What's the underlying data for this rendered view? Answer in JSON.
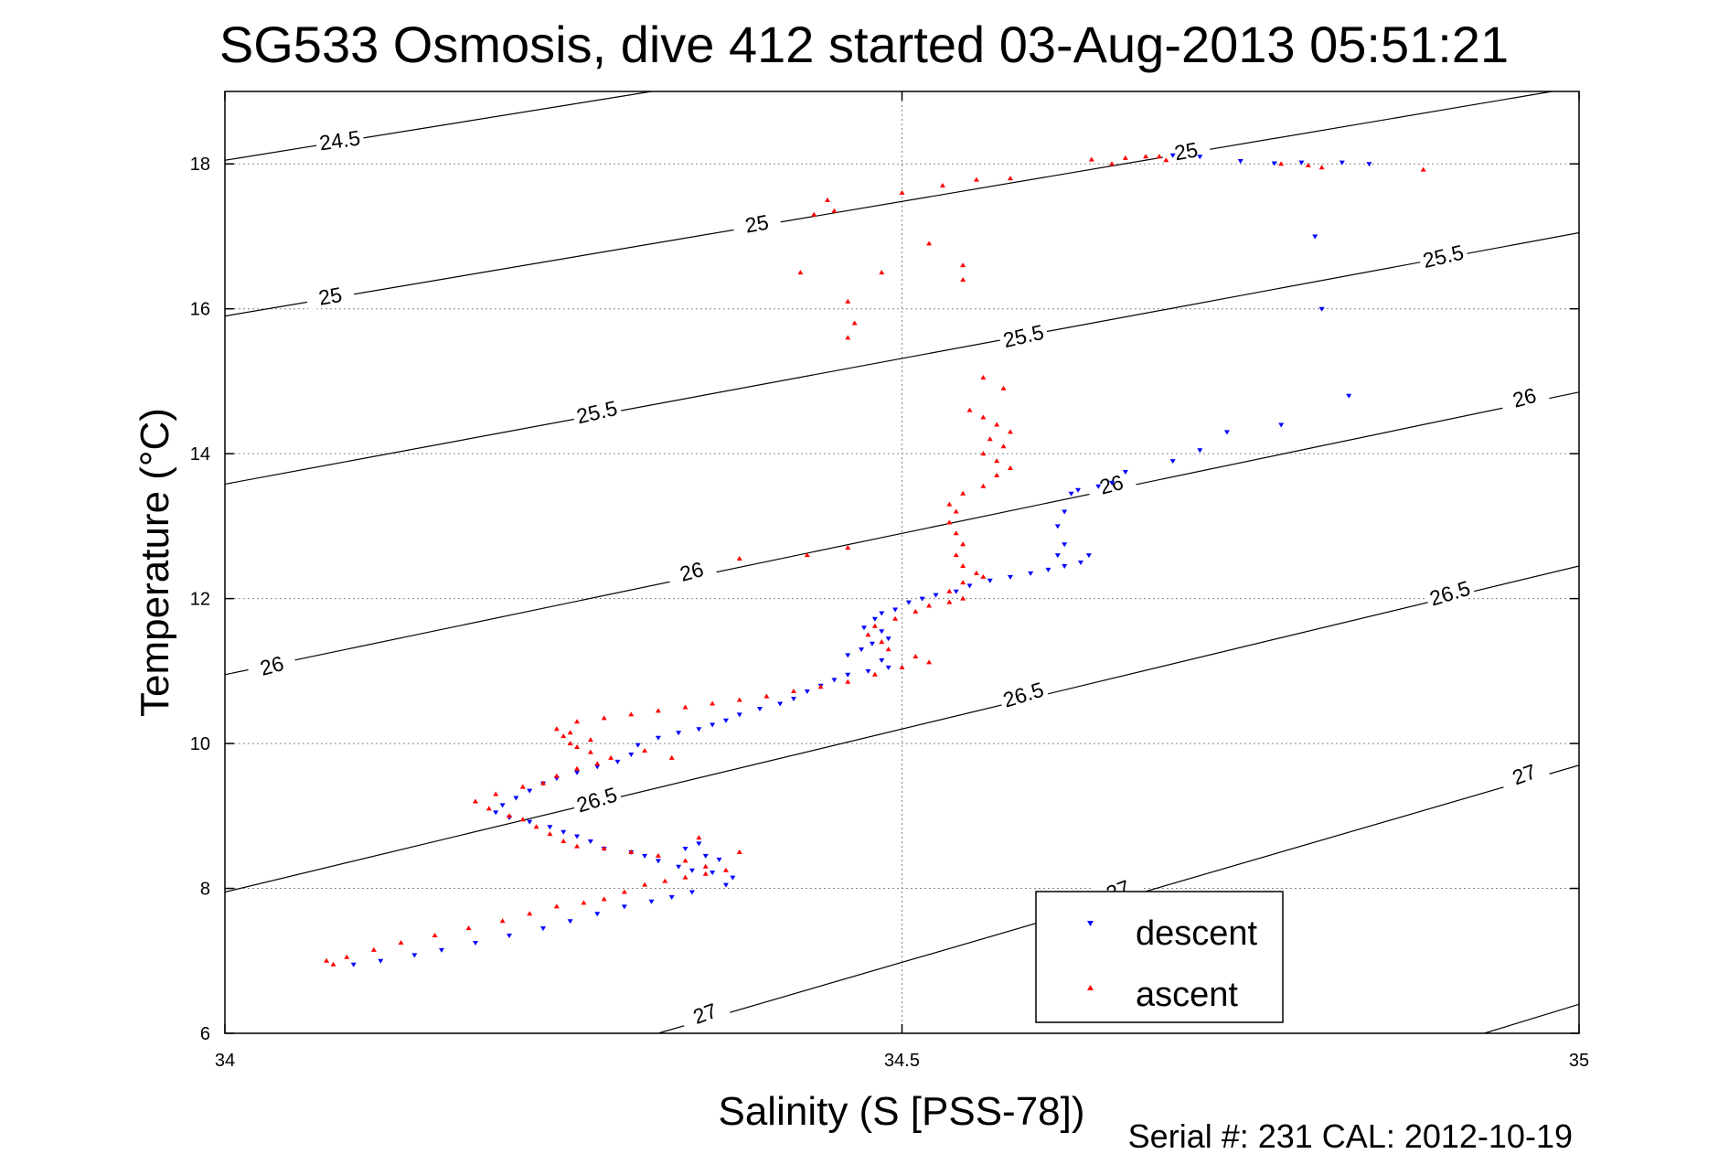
{
  "chart_data": {
    "type": "scatter",
    "title": "SG533 Osmosis, dive 412 started 03-Aug-2013 05:51:21",
    "xlabel": "Salinity (S [PSS-78])",
    "ylabel": "Temperature (°C)",
    "xlim": [
      34,
      35
    ],
    "ylim": [
      6,
      19
    ],
    "xticks": [
      34,
      34.5,
      35
    ],
    "xtick_labels": [
      "34",
      "34.5",
      "35"
    ],
    "yticks": [
      6,
      8,
      10,
      12,
      14,
      16,
      18
    ],
    "ytick_labels": [
      "6",
      "8",
      "10",
      "12",
      "14",
      "16",
      "18"
    ],
    "grid": true,
    "legend_position": "bottom-center",
    "footer": "Serial #: 231  CAL: 2012-10-19",
    "colors": {
      "descent": "#0000ff",
      "ascent": "#ff0000",
      "contour": "#000000"
    },
    "density_contours": [
      {
        "level": "24.5",
        "points": [
          [
            34.0,
            18.05
          ],
          [
            34.315,
            19.0
          ]
        ],
        "labels": [
          {
            "x": 34.085,
            "y": 18.3,
            "angle": -8
          }
        ]
      },
      {
        "level": "25",
        "points": [
          [
            34.0,
            15.9
          ],
          [
            34.98,
            19.0
          ]
        ],
        "labels": [
          {
            "x": 34.078,
            "y": 16.15,
            "angle": -10
          },
          {
            "x": 34.393,
            "y": 17.15,
            "angle": -10
          },
          {
            "x": 34.71,
            "y": 18.15,
            "angle": -10
          }
        ]
      },
      {
        "level": "25.5",
        "points": [
          [
            34.0,
            13.58
          ],
          [
            35.0,
            17.05
          ]
        ],
        "labels": [
          {
            "x": 34.275,
            "y": 14.55,
            "angle": -13
          },
          {
            "x": 34.59,
            "y": 15.6,
            "angle": -13
          },
          {
            "x": 34.9,
            "y": 16.7,
            "angle": -13
          }
        ]
      },
      {
        "level": "26",
        "points": [
          [
            34.0,
            10.95
          ],
          [
            35.0,
            14.85
          ]
        ],
        "labels": [
          {
            "x": 34.035,
            "y": 11.05,
            "angle": -15
          },
          {
            "x": 34.345,
            "y": 12.35,
            "angle": -15
          },
          {
            "x": 34.655,
            "y": 13.55,
            "angle": -15
          },
          {
            "x": 34.96,
            "y": 14.75,
            "angle": -15
          }
        ]
      },
      {
        "level": "26.5",
        "points": [
          [
            34.0,
            7.95
          ],
          [
            35.0,
            12.45
          ]
        ],
        "labels": [
          {
            "x": 34.275,
            "y": 9.2,
            "angle": -17
          },
          {
            "x": 34.59,
            "y": 10.65,
            "angle": -17
          },
          {
            "x": 34.905,
            "y": 12.05,
            "angle": -17
          }
        ]
      },
      {
        "level": "27",
        "points": [
          [
            34.32,
            6.0
          ],
          [
            35.0,
            9.7
          ]
        ],
        "labels": [
          {
            "x": 34.355,
            "y": 6.25,
            "angle": -20
          },
          {
            "x": 34.66,
            "y": 7.95,
            "angle": -20
          },
          {
            "x": 34.96,
            "y": 9.55,
            "angle": -20
          }
        ]
      },
      {
        "level": "27b",
        "points": [
          [
            34.93,
            6.0
          ],
          [
            35.0,
            6.4
          ]
        ],
        "labels": []
      }
    ],
    "series": [
      {
        "name": "descent",
        "marker": "triangle-down",
        "points": [
          [
            34.845,
            18.0
          ],
          [
            34.825,
            18.02
          ],
          [
            34.795,
            18.02
          ],
          [
            34.775,
            18.01
          ],
          [
            34.75,
            18.04
          ],
          [
            34.72,
            18.1
          ],
          [
            34.7,
            18.12
          ],
          [
            34.805,
            17.0
          ],
          [
            34.81,
            16.0
          ],
          [
            34.83,
            14.8
          ],
          [
            34.78,
            14.4
          ],
          [
            34.74,
            14.3
          ],
          [
            34.72,
            14.05
          ],
          [
            34.7,
            13.9
          ],
          [
            34.665,
            13.75
          ],
          [
            34.655,
            13.6
          ],
          [
            34.645,
            13.55
          ],
          [
            34.63,
            13.5
          ],
          [
            34.625,
            13.45
          ],
          [
            34.62,
            13.2
          ],
          [
            34.615,
            13.0
          ],
          [
            34.62,
            12.75
          ],
          [
            34.615,
            12.6
          ],
          [
            34.638,
            12.6
          ],
          [
            34.632,
            12.5
          ],
          [
            34.62,
            12.45
          ],
          [
            34.608,
            12.4
          ],
          [
            34.595,
            12.35
          ],
          [
            34.58,
            12.3
          ],
          [
            34.565,
            12.25
          ],
          [
            34.55,
            12.18
          ],
          [
            34.54,
            12.1
          ],
          [
            34.525,
            12.05
          ],
          [
            34.515,
            12.0
          ],
          [
            34.505,
            11.95
          ],
          [
            34.495,
            11.85
          ],
          [
            34.485,
            11.8
          ],
          [
            34.48,
            11.72
          ],
          [
            34.472,
            11.6
          ],
          [
            34.485,
            11.55
          ],
          [
            34.49,
            11.45
          ],
          [
            34.478,
            11.38
          ],
          [
            34.47,
            11.3
          ],
          [
            34.46,
            11.22
          ],
          [
            34.485,
            11.15
          ],
          [
            34.49,
            11.05
          ],
          [
            34.475,
            11.0
          ],
          [
            34.46,
            10.95
          ],
          [
            34.45,
            10.88
          ],
          [
            34.44,
            10.8
          ],
          [
            34.43,
            10.72
          ],
          [
            34.42,
            10.62
          ],
          [
            34.41,
            10.55
          ],
          [
            34.395,
            10.48
          ],
          [
            34.38,
            10.4
          ],
          [
            34.37,
            10.32
          ],
          [
            34.36,
            10.26
          ],
          [
            34.35,
            10.2
          ],
          [
            34.335,
            10.15
          ],
          [
            34.32,
            10.08
          ],
          [
            34.305,
            9.98
          ],
          [
            34.3,
            9.85
          ],
          [
            34.29,
            9.75
          ],
          [
            34.275,
            9.68
          ],
          [
            34.26,
            9.6
          ],
          [
            34.245,
            9.52
          ],
          [
            34.235,
            9.45
          ],
          [
            34.225,
            9.35
          ],
          [
            34.215,
            9.25
          ],
          [
            34.205,
            9.15
          ],
          [
            34.2,
            9.05
          ],
          [
            34.21,
            8.98
          ],
          [
            34.225,
            8.92
          ],
          [
            34.24,
            8.85
          ],
          [
            34.25,
            8.78
          ],
          [
            34.26,
            8.72
          ],
          [
            34.27,
            8.65
          ],
          [
            34.28,
            8.55
          ],
          [
            34.3,
            8.5
          ],
          [
            34.31,
            8.45
          ],
          [
            34.32,
            8.38
          ],
          [
            34.335,
            8.3
          ],
          [
            34.345,
            8.25
          ],
          [
            34.36,
            8.22
          ],
          [
            34.375,
            8.15
          ],
          [
            34.37,
            8.05
          ],
          [
            34.345,
            7.95
          ],
          [
            34.33,
            7.88
          ],
          [
            34.315,
            7.82
          ],
          [
            34.295,
            7.75
          ],
          [
            34.275,
            7.65
          ],
          [
            34.255,
            7.55
          ],
          [
            34.235,
            7.45
          ],
          [
            34.21,
            7.35
          ],
          [
            34.185,
            7.25
          ],
          [
            34.16,
            7.15
          ],
          [
            34.14,
            7.08
          ],
          [
            34.115,
            7.0
          ],
          [
            34.095,
            6.95
          ],
          [
            34.35,
            8.62
          ],
          [
            34.34,
            8.55
          ],
          [
            34.355,
            8.45
          ],
          [
            34.365,
            8.4
          ]
        ]
      },
      {
        "name": "ascent",
        "marker": "triangle-up",
        "points": [
          [
            34.655,
            18.0
          ],
          [
            34.64,
            18.06
          ],
          [
            34.665,
            18.08
          ],
          [
            34.68,
            18.1
          ],
          [
            34.69,
            18.1
          ],
          [
            34.695,
            18.05
          ],
          [
            34.78,
            18.0
          ],
          [
            34.8,
            17.98
          ],
          [
            34.81,
            17.95
          ],
          [
            34.885,
            17.92
          ],
          [
            34.58,
            17.8
          ],
          [
            34.555,
            17.78
          ],
          [
            34.53,
            17.7
          ],
          [
            34.5,
            17.6
          ],
          [
            34.445,
            17.5
          ],
          [
            34.435,
            17.3
          ],
          [
            34.45,
            17.35
          ],
          [
            34.52,
            16.9
          ],
          [
            34.485,
            16.5
          ],
          [
            34.545,
            16.6
          ],
          [
            34.545,
            16.4
          ],
          [
            34.425,
            16.5
          ],
          [
            34.46,
            16.1
          ],
          [
            34.465,
            15.8
          ],
          [
            34.46,
            15.6
          ],
          [
            34.56,
            15.05
          ],
          [
            34.575,
            14.9
          ],
          [
            34.55,
            14.6
          ],
          [
            34.56,
            14.5
          ],
          [
            34.57,
            14.4
          ],
          [
            34.58,
            14.3
          ],
          [
            34.565,
            14.2
          ],
          [
            34.575,
            14.1
          ],
          [
            34.56,
            14.0
          ],
          [
            34.57,
            13.9
          ],
          [
            34.58,
            13.8
          ],
          [
            34.57,
            13.7
          ],
          [
            34.56,
            13.55
          ],
          [
            34.545,
            13.45
          ],
          [
            34.535,
            13.3
          ],
          [
            34.54,
            13.2
          ],
          [
            34.535,
            13.05
          ],
          [
            34.54,
            12.9
          ],
          [
            34.545,
            12.75
          ],
          [
            34.54,
            12.6
          ],
          [
            34.545,
            12.45
          ],
          [
            34.555,
            12.35
          ],
          [
            34.56,
            12.3
          ],
          [
            34.545,
            12.22
          ],
          [
            34.535,
            12.1
          ],
          [
            34.545,
            12.0
          ],
          [
            34.535,
            11.95
          ],
          [
            34.52,
            11.9
          ],
          [
            34.51,
            11.82
          ],
          [
            34.495,
            11.72
          ],
          [
            34.48,
            11.62
          ],
          [
            34.475,
            11.5
          ],
          [
            34.485,
            11.4
          ],
          [
            34.49,
            11.3
          ],
          [
            34.51,
            11.2
          ],
          [
            34.52,
            11.12
          ],
          [
            34.5,
            11.05
          ],
          [
            34.48,
            10.95
          ],
          [
            34.46,
            10.85
          ],
          [
            34.44,
            10.78
          ],
          [
            34.42,
            10.72
          ],
          [
            34.4,
            10.65
          ],
          [
            34.38,
            10.6
          ],
          [
            34.36,
            10.55
          ],
          [
            34.34,
            10.5
          ],
          [
            34.32,
            10.45
          ],
          [
            34.3,
            10.4
          ],
          [
            34.28,
            10.35
          ],
          [
            34.26,
            10.3
          ],
          [
            34.245,
            10.2
          ],
          [
            34.25,
            10.1
          ],
          [
            34.255,
            10.0
          ],
          [
            34.26,
            9.95
          ],
          [
            34.27,
            9.88
          ],
          [
            34.285,
            9.8
          ],
          [
            34.275,
            9.72
          ],
          [
            34.26,
            9.65
          ],
          [
            34.245,
            9.55
          ],
          [
            34.235,
            9.45
          ],
          [
            34.22,
            9.4
          ],
          [
            34.2,
            9.3
          ],
          [
            34.185,
            9.2
          ],
          [
            34.195,
            9.1
          ],
          [
            34.21,
            9.0
          ],
          [
            34.22,
            8.95
          ],
          [
            34.23,
            8.85
          ],
          [
            34.24,
            8.75
          ],
          [
            34.25,
            8.65
          ],
          [
            34.26,
            8.58
          ],
          [
            34.28,
            8.55
          ],
          [
            34.3,
            8.5
          ],
          [
            34.32,
            8.45
          ],
          [
            34.34,
            8.38
          ],
          [
            34.355,
            8.3
          ],
          [
            34.37,
            8.25
          ],
          [
            34.355,
            8.2
          ],
          [
            34.34,
            8.15
          ],
          [
            34.325,
            8.1
          ],
          [
            34.31,
            8.05
          ],
          [
            34.295,
            7.95
          ],
          [
            34.28,
            7.85
          ],
          [
            34.265,
            7.8
          ],
          [
            34.245,
            7.75
          ],
          [
            34.225,
            7.65
          ],
          [
            34.205,
            7.55
          ],
          [
            34.18,
            7.45
          ],
          [
            34.155,
            7.35
          ],
          [
            34.13,
            7.25
          ],
          [
            34.11,
            7.15
          ],
          [
            34.09,
            7.05
          ],
          [
            34.075,
            7.0
          ],
          [
            34.08,
            6.95
          ],
          [
            34.255,
            10.15
          ],
          [
            34.27,
            10.05
          ],
          [
            34.31,
            9.9
          ],
          [
            34.33,
            9.8
          ],
          [
            34.35,
            8.7
          ],
          [
            34.38,
            8.5
          ],
          [
            34.46,
            12.7
          ],
          [
            34.43,
            12.6
          ],
          [
            34.38,
            12.55
          ]
        ]
      }
    ]
  },
  "legend": {
    "entries": [
      {
        "label": "descent",
        "color": "#0000ff",
        "marker": "triangle-down"
      },
      {
        "label": "ascent",
        "color": "#ff0000",
        "marker": "triangle-up"
      }
    ]
  }
}
